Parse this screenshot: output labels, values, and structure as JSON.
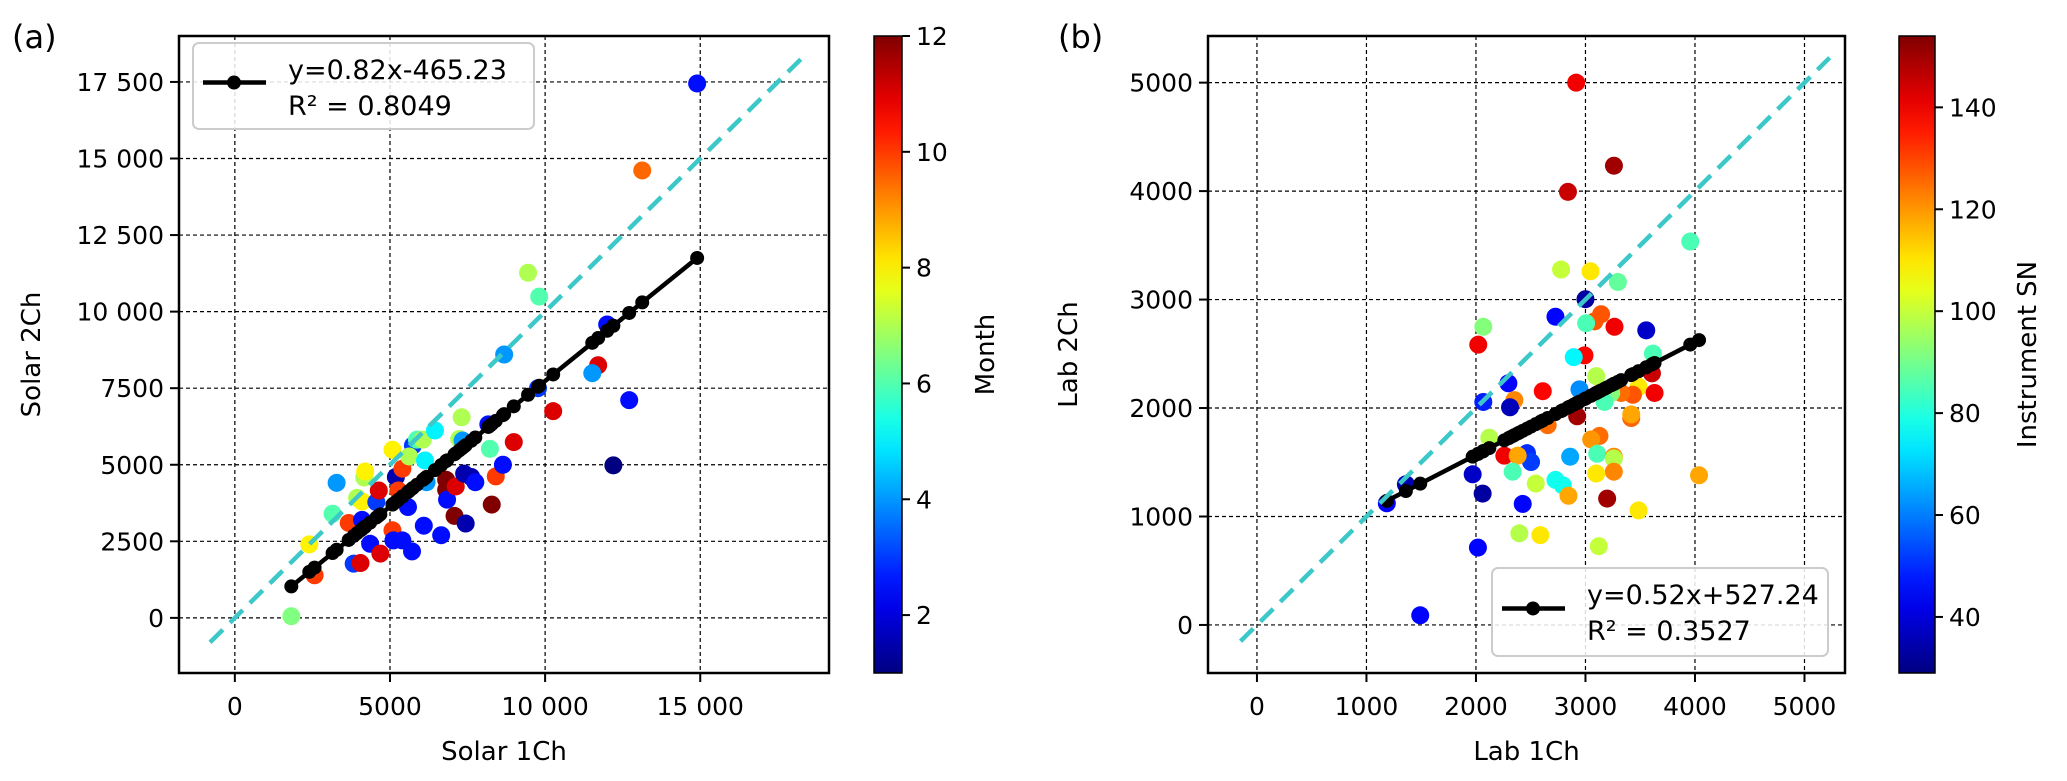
{
  "chart_data": [
    {
      "type": "scatter",
      "panel_label": "(a)",
      "xlabel": "Solar 1Ch",
      "ylabel": "Solar 2Ch",
      "xlim": [
        -1800,
        19150
      ],
      "ylim": [
        -1800,
        19000
      ],
      "grid": true,
      "xticks": [
        0,
        5000,
        10000,
        15000
      ],
      "xtick_labels": [
        "0",
        "5000",
        "10 000",
        "15 000"
      ],
      "yticks": [
        0,
        2500,
        5000,
        7500,
        10000,
        12500,
        15000,
        17500
      ],
      "ytick_labels": [
        "0",
        "2500",
        "5000",
        "7500",
        "10 000",
        "12 500",
        "15 000",
        "17 500"
      ],
      "colorbar": {
        "label": "Month",
        "range": [
          1,
          12
        ],
        "ticks": [
          2,
          4,
          6,
          8,
          10,
          12
        ],
        "tick_labels": [
          "2",
          "4",
          "6",
          "8",
          "10",
          "12"
        ],
        "colormap": "jet"
      },
      "fit": {
        "slope": 0.82,
        "intercept": -465.23,
        "equation": "y=0.82x-465.23",
        "r2": "R² = 0.8049",
        "color": "#000000"
      },
      "identity_line": {
        "range": [
          -800,
          18300
        ],
        "color": "#3cc8c8",
        "style": "dashed"
      },
      "legend_position": "top-left",
      "points_xyc": [
        [
          1820,
          54,
          6.5
        ],
        [
          2400,
          2400,
          8
        ],
        [
          2570,
          1390,
          10
        ],
        [
          3150,
          3400,
          6
        ],
        [
          3280,
          4410,
          4
        ],
        [
          3670,
          3100,
          10
        ],
        [
          3830,
          1770,
          3
        ],
        [
          4050,
          1790,
          11
        ],
        [
          3940,
          3920,
          7
        ],
        [
          4100,
          3800,
          8
        ],
        [
          4170,
          4580,
          7
        ],
        [
          4200,
          4780,
          8
        ],
        [
          4100,
          3200,
          2.5
        ],
        [
          4360,
          2420,
          2.5
        ],
        [
          4560,
          3780,
          3
        ],
        [
          4640,
          4160,
          11
        ],
        [
          4690,
          2100,
          11
        ],
        [
          5080,
          5490,
          8
        ],
        [
          5080,
          2860,
          10
        ],
        [
          5110,
          2530,
          2.5
        ],
        [
          5190,
          4600,
          1.5
        ],
        [
          5400,
          4870,
          10
        ],
        [
          5270,
          4160,
          10
        ],
        [
          5580,
          3620,
          2.5
        ],
        [
          5400,
          2530,
          2.5
        ],
        [
          5710,
          2170,
          2.5
        ],
        [
          5740,
          5630,
          3
        ],
        [
          5620,
          5270,
          7
        ],
        [
          5870,
          5820,
          6
        ],
        [
          6060,
          5820,
          7
        ],
        [
          6130,
          5140,
          5
        ],
        [
          6180,
          4430,
          4
        ],
        [
          6090,
          3010,
          2.5
        ],
        [
          6450,
          6120,
          5
        ],
        [
          6650,
          2700,
          2.5
        ],
        [
          6810,
          4510,
          12
        ],
        [
          6810,
          4180,
          12
        ],
        [
          6840,
          3860,
          2.5
        ],
        [
          7120,
          4290,
          11
        ],
        [
          7080,
          3330,
          12
        ],
        [
          7310,
          6550,
          7
        ],
        [
          7230,
          5840,
          7
        ],
        [
          7440,
          3080,
          1.5
        ],
        [
          7340,
          5790,
          4
        ],
        [
          7390,
          4710,
          1.5
        ],
        [
          7620,
          4600,
          1.5
        ],
        [
          7750,
          4430,
          2.5
        ],
        [
          8220,
          5520,
          6
        ],
        [
          8280,
          3700,
          12
        ],
        [
          8410,
          4620,
          10
        ],
        [
          8640,
          5000,
          2.5
        ],
        [
          8170,
          6320,
          2.5
        ],
        [
          8990,
          5740,
          11
        ],
        [
          10260,
          6750,
          11
        ],
        [
          12200,
          4980,
          1
        ],
        [
          13130,
          14610,
          9.5
        ],
        [
          9450,
          11270,
          7
        ],
        [
          9810,
          10490,
          6
        ],
        [
          8680,
          8600,
          4
        ],
        [
          12000,
          9580,
          2.5
        ],
        [
          11710,
          8250,
          11
        ],
        [
          11520,
          7990,
          4
        ],
        [
          12710,
          7110,
          2.5
        ],
        [
          9770,
          7500,
          3
        ],
        [
          14900,
          17450,
          2.5
        ]
      ]
    },
    {
      "type": "scatter",
      "panel_label": "(b)",
      "xlabel": "Lab 1Ch",
      "ylabel": "Lab 2Ch",
      "xlim": [
        -447,
        5370
      ],
      "ylim": [
        -443,
        5430
      ],
      "grid": true,
      "xticks": [
        0,
        1000,
        2000,
        3000,
        4000,
        5000
      ],
      "xtick_labels": [
        "0",
        "1000",
        "2000",
        "3000",
        "4000",
        "5000"
      ],
      "yticks": [
        0,
        1000,
        2000,
        3000,
        4000,
        5000
      ],
      "ytick_labels": [
        "0",
        "1000",
        "2000",
        "3000",
        "4000",
        "5000"
      ],
      "colorbar": {
        "label": "Instrument SN",
        "range": [
          29,
          154
        ],
        "ticks": [
          40,
          60,
          80,
          100,
          120,
          140
        ],
        "tick_labels": [
          "40",
          "60",
          "80",
          "100",
          "120",
          "140"
        ],
        "colormap": "jet"
      },
      "fit": {
        "slope": 0.52,
        "intercept": 527.24,
        "equation": "y=0.52x+527.24",
        "r2": "R² = 0.3527",
        "color": "#000000"
      },
      "identity_line": {
        "range": [
          -150,
          5230
        ],
        "color": "#3cc8c8",
        "style": "dashed"
      },
      "legend_position": "bottom-right",
      "points_xyc": [
        [
          2915,
          5000,
          140
        ],
        [
          3260,
          4234,
          150
        ],
        [
          2840,
          3993,
          145
        ],
        [
          3957,
          3535,
          85
        ],
        [
          2777,
          3277,
          100
        ],
        [
          3046,
          3261,
          110
        ],
        [
          3296,
          3162,
          88
        ],
        [
          3000,
          3003,
          33
        ],
        [
          2726,
          2842,
          45
        ],
        [
          3143,
          2865,
          128
        ],
        [
          3082,
          2799,
          128
        ],
        [
          3006,
          2782,
          85
        ],
        [
          3265,
          2749,
          140
        ],
        [
          3555,
          2716,
          38
        ],
        [
          2067,
          2749,
          92
        ],
        [
          2021,
          2584,
          140
        ],
        [
          3616,
          2502,
          85
        ],
        [
          2991,
          2485,
          138
        ],
        [
          2893,
          2469,
          75
        ],
        [
          3607,
          2320,
          145
        ],
        [
          3098,
          2294,
          98
        ],
        [
          2296,
          2228,
          45
        ],
        [
          2610,
          2155,
          138
        ],
        [
          2945,
          2172,
          62
        ],
        [
          3485,
          2195,
          110
        ],
        [
          3433,
          2122,
          128
        ],
        [
          3631,
          2139,
          140
        ],
        [
          3326,
          2139,
          125
        ],
        [
          3235,
          2139,
          92
        ],
        [
          3174,
          2056,
          85
        ],
        [
          2351,
          2073,
          122
        ],
        [
          2067,
          2056,
          48
        ],
        [
          2311,
          2007,
          36
        ],
        [
          2924,
          1924,
          150
        ],
        [
          3418,
          1908,
          126
        ],
        [
          3418,
          1941,
          118
        ],
        [
          2655,
          1842,
          125
        ],
        [
          2122,
          1726,
          98
        ],
        [
          3128,
          1743,
          125
        ],
        [
          3052,
          1710,
          120
        ],
        [
          2466,
          1584,
          50
        ],
        [
          2503,
          1502,
          52
        ],
        [
          2259,
          1561,
          140
        ],
        [
          2381,
          1561,
          118
        ],
        [
          2860,
          1551,
          65
        ],
        [
          3107,
          1578,
          85
        ],
        [
          3259,
          1551,
          122
        ],
        [
          3259,
          1535,
          98
        ],
        [
          3259,
          1413,
          122
        ],
        [
          3098,
          1396,
          110
        ],
        [
          4037,
          1380,
          118
        ],
        [
          2335,
          1413,
          85
        ],
        [
          1970,
          1389,
          38
        ],
        [
          2546,
          1304,
          100
        ],
        [
          2726,
          1337,
          78
        ],
        [
          2793,
          1287,
          78
        ],
        [
          2845,
          1191,
          118
        ],
        [
          2061,
          1211,
          33
        ],
        [
          3198,
          1165,
          150
        ],
        [
          1360,
          1297,
          35
        ],
        [
          1186,
          1122,
          45
        ],
        [
          3485,
          1056,
          110
        ],
        [
          2427,
          1116,
          45
        ],
        [
          2396,
          845,
          98
        ],
        [
          2588,
          828,
          110
        ],
        [
          3122,
          726,
          100
        ],
        [
          2018,
          713,
          45
        ],
        [
          1491,
          89,
          45
        ]
      ]
    }
  ]
}
